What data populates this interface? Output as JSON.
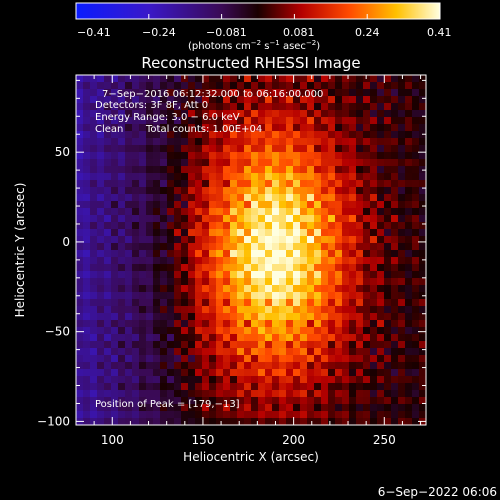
{
  "colorbar": {
    "ticks": [
      "−0.41",
      "−0.24",
      "−0.081",
      "0.081",
      "0.24",
      "0.41"
    ],
    "units_prefix": "(photons cm",
    "units_exp1": "−2",
    "units_mid1": " s",
    "units_exp2": "−1",
    "units_mid2": " asec",
    "units_exp3": "−2",
    "units_suffix": ")"
  },
  "annotations": {
    "line1": "7−Sep−2016 06:12:32.000 to 06:16:00.000",
    "line2": "Detectors: 3F 8F, Att 0",
    "line3": "Energy Range: 3.0 − 6.0 keV",
    "line4_left": "Clean",
    "line4_right": "Total counts: 1.00E+04",
    "peak": "Position of Peak = [179,−13]"
  },
  "footer_timestamp": "6−Sep−2022 06:06",
  "chart_data": {
    "type": "heatmap",
    "title": "Reconstructed RHESSI Image",
    "xlabel": "Heliocentric X (arcsec)",
    "ylabel": "Heliocentric Y (arcsec)",
    "xlim": [
      80,
      273
    ],
    "ylim": [
      -102,
      93
    ],
    "xticks": [
      100,
      150,
      200,
      250
    ],
    "yticks": [
      50,
      0,
      -50,
      -100
    ],
    "xtick_labels": [
      "100",
      "150",
      "200",
      "250"
    ],
    "ytick_labels": [
      "50",
      "0",
      "−50",
      "−100"
    ],
    "colorbar_range": [
      -0.41,
      0.41
    ],
    "colormap": "blue-purple-red-orange-yellow-white",
    "peak_position": [
      179,
      -13
    ],
    "source": {
      "x": 190,
      "y": -5,
      "sx": 28,
      "sy": 48,
      "amplitude": 0.41
    }
  }
}
